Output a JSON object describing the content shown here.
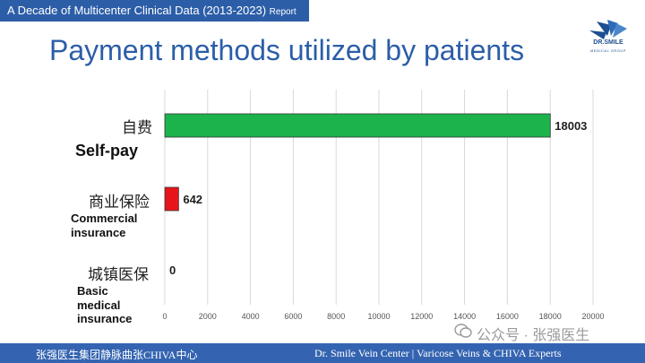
{
  "header": {
    "banner_main": "A Decade of Multicenter Clinical Data (2013-2023)",
    "banner_suffix": "Report",
    "title": "Payment methods utilized by patients"
  },
  "logo": {
    "name": "DR.SMILE",
    "subtitle": "MEDICAL GROUP",
    "icon": "bird-wings-logo",
    "color": "#1d4f91"
  },
  "footer": {
    "left": "张强医生集团静脉曲张CHIVA中心",
    "right": "Dr. Smile Vein Center | Varicose Veins & CHIVA Experts",
    "color": "#3464b1"
  },
  "watermark": {
    "icon": "wechat-icon",
    "text": "公众号 · 张强医生"
  },
  "chart_data": {
    "type": "bar",
    "orientation": "horizontal",
    "categories": [
      "自费 Self-pay",
      "商业保险 Commercial insurance",
      "城镇医保 Basic medical insurance"
    ],
    "category_labels": [
      {
        "cn": "自费",
        "en": "Self-pay"
      },
      {
        "cn": "商业保险",
        "en": "Commercial insurance"
      },
      {
        "cn": "城镇医保",
        "en": "Basic medical insurance"
      }
    ],
    "values": [
      18003,
      642,
      0
    ],
    "colors": [
      "#1db34c",
      "#e8141b",
      "#cccccc"
    ],
    "data_labels": [
      "18003",
      "642",
      "0"
    ],
    "xlim": [
      0,
      20000
    ],
    "xticks": [
      0,
      2000,
      4000,
      6000,
      8000,
      10000,
      12000,
      14000,
      16000,
      18000,
      20000
    ],
    "grid": true
  }
}
